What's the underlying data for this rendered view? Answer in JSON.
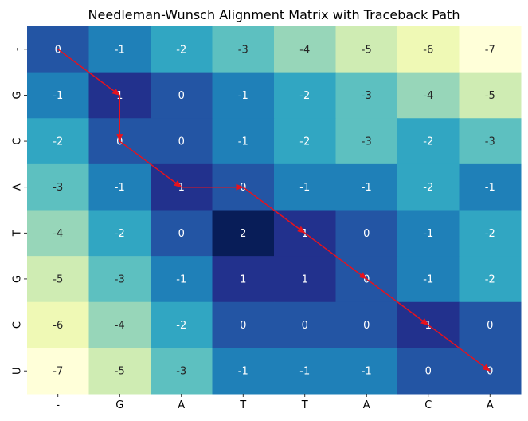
{
  "chart_data": {
    "type": "heatmap",
    "title": "Needleman-Wunsch Alignment Matrix with Traceback Path",
    "x_labels": [
      "-",
      "G",
      "A",
      "T",
      "T",
      "A",
      "C",
      "A"
    ],
    "y_labels": [
      "-",
      "G",
      "C",
      "A",
      "T",
      "G",
      "C",
      "U"
    ],
    "values": [
      [
        0,
        -1,
        -2,
        -3,
        -4,
        -5,
        -6,
        -7
      ],
      [
        -1,
        1,
        0,
        -1,
        -2,
        -3,
        -4,
        -5
      ],
      [
        -2,
        0,
        0,
        -1,
        -2,
        -3,
        -2,
        -3
      ],
      [
        -3,
        -1,
        1,
        0,
        -1,
        -1,
        -2,
        -1
      ],
      [
        -4,
        -2,
        0,
        2,
        1,
        0,
        -1,
        -2
      ],
      [
        -5,
        -3,
        -1,
        1,
        1,
        0,
        -1,
        -2
      ],
      [
        -6,
        -4,
        -2,
        0,
        0,
        0,
        1,
        0
      ],
      [
        -7,
        -5,
        -3,
        -1,
        -1,
        -1,
        0,
        0
      ]
    ],
    "value_range": [
      -7,
      2
    ],
    "colormap": "YlGnBu_r",
    "annotations": true,
    "traceback_path": [
      [
        0,
        0
      ],
      [
        1,
        1
      ],
      [
        2,
        1
      ],
      [
        3,
        2
      ],
      [
        3,
        3
      ],
      [
        4,
        4
      ],
      [
        5,
        5
      ],
      [
        6,
        6
      ],
      [
        7,
        7
      ]
    ],
    "path_color": "#e8121d"
  }
}
